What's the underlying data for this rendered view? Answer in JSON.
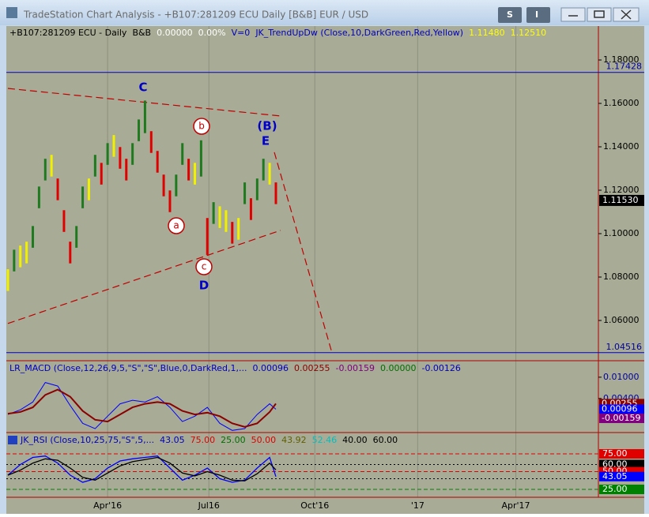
{
  "window": {
    "title": "TradeStation Chart Analysis - +B107:281209 ECU Daily [B&B] EUR / USD",
    "toolbar": [
      "S",
      "I"
    ]
  },
  "chart_data": {
    "type": "ohlc-bars",
    "header": [
      {
        "text": "+B107:281209 ECU - Daily",
        "color": "#000000"
      },
      {
        "text": "B&B",
        "color": "#000000"
      },
      {
        "text": "0.00000",
        "color": "#ffffff"
      },
      {
        "text": "0.00%",
        "color": "#ffffff"
      },
      {
        "text": "V=0",
        "color": "#0000c0"
      },
      {
        "text": "JK_TrendUpDw (Close,10,DarkGreen,Red,Yellow)",
        "color": "#0000c0"
      },
      {
        "text": "1.11480",
        "color": "#ffff00"
      },
      {
        "text": "1.12510",
        "color": "#ffff00"
      }
    ],
    "x": [
      0,
      4,
      8,
      12,
      16,
      20,
      24,
      28,
      32,
      36,
      40,
      44,
      48,
      52,
      56,
      60,
      64,
      68,
      72,
      76,
      80,
      84,
      88,
      92,
      96,
      100,
      104,
      108,
      112,
      116,
      120,
      124,
      128,
      132,
      136,
      140,
      144,
      148,
      152,
      156,
      160,
      164,
      168,
      172
    ],
    "high": [
      1.0836,
      1.0926,
      1.0945,
      1.0963,
      1.1035,
      1.1217,
      1.1345,
      1.1363,
      1.1254,
      1.1108,
      1.0963,
      1.1035,
      1.1217,
      1.1254,
      1.1363,
      1.1326,
      1.1417,
      1.1454,
      1.1399,
      1.1345,
      1.1417,
      1.1526,
      1.1613,
      1.1472,
      1.1381,
      1.1272,
      1.1199,
      1.1272,
      1.1417,
      1.1345,
      1.1326,
      1.143,
      1.1072,
      1.1145,
      1.1126,
      1.1108,
      1.1054,
      1.1072,
      1.1236,
      1.1163,
      1.1254,
      1.1345,
      1.1326,
      1.1236
    ],
    "low": [
      1.0736,
      1.0826,
      1.0845,
      1.0863,
      1.0935,
      1.1117,
      1.1245,
      1.1263,
      1.1154,
      1.1008,
      1.0863,
      1.0935,
      1.1117,
      1.1154,
      1.1263,
      1.1226,
      1.1317,
      1.1354,
      1.1299,
      1.1245,
      1.1317,
      1.1426,
      1.1463,
      1.1372,
      1.1281,
      1.1172,
      1.1099,
      1.1172,
      1.1317,
      1.1245,
      1.1226,
      1.1263,
      1.0902,
      1.1045,
      1.1026,
      1.1008,
      1.0954,
      1.0972,
      1.1136,
      1.1063,
      1.1154,
      1.1245,
      1.1226,
      1.1136
    ],
    "colors": {
      "up": "#1f7a1f",
      "down": "#e00000",
      "flat": "#f0f000"
    },
    "xlim": [
      -1,
      379
    ],
    "xticks": [
      {
        "value": 64,
        "label": "Apr'16"
      },
      {
        "value": 129,
        "label": "Jul16"
      },
      {
        "value": 197,
        "label": "Oct'16"
      },
      {
        "value": 263,
        "label": "'17"
      },
      {
        "value": 326,
        "label": "Apr'17"
      }
    ],
    "ylim": [
      1.04145,
      1.19564
    ],
    "yticks": [
      {
        "value": 1.18,
        "label": "1.18000"
      },
      {
        "value": 1.16,
        "label": "1.16000"
      },
      {
        "value": 1.14,
        "label": "1.14000"
      },
      {
        "value": 1.12,
        "label": "1.12000"
      },
      {
        "value": 1.1,
        "label": "1.10000"
      },
      {
        "value": 1.08,
        "label": "1.08000"
      },
      {
        "value": 1.06,
        "label": "1.06000"
      }
    ],
    "levels": [
      1.17428,
      1.04516
    ],
    "last": {
      "value": 1.1153,
      "label": "1.11530"
    },
    "trendlines": [
      {
        "x": [
          0,
          175
        ],
        "y": [
          1.1669,
          1.1542
        ]
      },
      {
        "x": [
          0,
          175
        ],
        "y": [
          1.0586,
          1.1015
        ]
      },
      {
        "x": [
          171,
          208
        ],
        "y": [
          1.1375,
          1.0451
        ]
      }
    ],
    "annotations": [
      {
        "text": "C",
        "circled": false
      },
      {
        "text": "(B)",
        "circled": false
      },
      {
        "text": "E",
        "circled": false
      },
      {
        "text": "D",
        "circled": false
      },
      {
        "text": "b",
        "circled": true
      },
      {
        "text": "a",
        "circled": true
      },
      {
        "text": "c",
        "circled": true
      }
    ],
    "macd": {
      "header": [
        {
          "text": "LR_MACD (Close,12,26,9,5,\"S\",\"S\",Blue,0,DarkRed,1,...",
          "color": "#0000c0"
        },
        {
          "text": "0.00096",
          "color": "#0000c0"
        },
        {
          "text": "0.00255",
          "color": "#8b0000"
        },
        {
          "text": "-0.00159",
          "color": "#800080"
        },
        {
          "text": "0.00000",
          "color": "#007000"
        },
        {
          "text": "-0.00126",
          "color": "#0000c0"
        }
      ],
      "x": [
        0,
        8,
        16,
        24,
        32,
        40,
        48,
        56,
        64,
        72,
        80,
        88,
        96,
        104,
        112,
        120,
        128,
        136,
        144,
        152,
        160,
        168,
        172
      ],
      "series": [
        {
          "name": "MACD",
          "color": "#0000ff",
          "values": [
            -0.0005,
            0.0008,
            0.003,
            0.0085,
            0.0075,
            0.002,
            -0.003,
            -0.0045,
            -0.001,
            0.0025,
            0.0035,
            0.003,
            0.0045,
            0.0015,
            -0.0025,
            -0.001,
            0.0015,
            -0.003,
            -0.005,
            -0.0045,
            -0.0005,
            0.0025,
            0.00096
          ]
        },
        {
          "name": "Signal",
          "color": "#8b0000",
          "values": [
            -0.0003,
            0.0002,
            0.0015,
            0.005,
            0.0065,
            0.0045,
            0.0005,
            -0.002,
            -0.0025,
            -0.0005,
            0.0015,
            0.0025,
            0.003,
            0.0025,
            0.0005,
            -0.0005,
            0,
            -0.001,
            -0.003,
            -0.004,
            -0.003,
            0.0002,
            0.00255
          ]
        }
      ],
      "ylim": [
        -0.0056,
        0.0142
      ],
      "yticks": [
        {
          "value": 0.01,
          "label": "0.01000"
        },
        {
          "value": 0.004,
          "label": "0.00400"
        }
      ],
      "boxes": [
        {
          "value": 0.00255,
          "label": "0.00255",
          "color": "#8b0000"
        },
        {
          "value": 0.00096,
          "label": "0.00096",
          "color": "#0000ff"
        },
        {
          "value": -0.00159,
          "label": "-0.00159",
          "color": "#800080"
        }
      ]
    },
    "rsi": {
      "header": [
        {
          "text": "JK_RSI (Close,10,25,75,\"S\",5,...",
          "color": "#0000c0"
        },
        {
          "text": "43.05",
          "color": "#0000c0"
        },
        {
          "text": "75.00",
          "color": "#e00000"
        },
        {
          "text": "25.00",
          "color": "#007000"
        },
        {
          "text": "50.00",
          "color": "#e00000"
        },
        {
          "text": "43.92",
          "color": "#606000"
        },
        {
          "text": "52.46",
          "color": "#00c0c0"
        },
        {
          "text": "40.00",
          "color": "#000000"
        },
        {
          "text": "60.00",
          "color": "#000000"
        }
      ],
      "x": [
        0,
        8,
        16,
        24,
        32,
        40,
        48,
        56,
        64,
        72,
        80,
        88,
        96,
        104,
        112,
        120,
        128,
        136,
        144,
        152,
        160,
        168,
        172
      ],
      "series": [
        {
          "name": "RSI",
          "color": "#0000ff",
          "values": [
            45,
            60,
            70,
            72,
            62,
            45,
            35,
            40,
            55,
            65,
            68,
            70,
            72,
            55,
            38,
            45,
            55,
            40,
            35,
            38,
            55,
            70,
            43.05
          ]
        },
        {
          "name": "Avg",
          "color": "#000000",
          "values": [
            45,
            52,
            62,
            68,
            66,
            55,
            42,
            38,
            48,
            58,
            64,
            67,
            70,
            62,
            48,
            44,
            50,
            45,
            38,
            37,
            47,
            62,
            52.46
          ]
        }
      ],
      "ylim": [
        13.9,
        102.8
      ],
      "levels": [
        {
          "value": 75,
          "label": "75.00",
          "color": "#e00000"
        },
        {
          "value": 60,
          "label": "60.00",
          "color": "#000000"
        },
        {
          "value": 50,
          "label": "50.00",
          "color": "#e00000"
        },
        {
          "value": 40,
          "color": "#000000"
        },
        {
          "value": 25,
          "label": "25.00",
          "color": "#008000"
        }
      ],
      "last": {
        "value": 43.05,
        "label": "43.05",
        "color": "#0000ff"
      }
    }
  }
}
